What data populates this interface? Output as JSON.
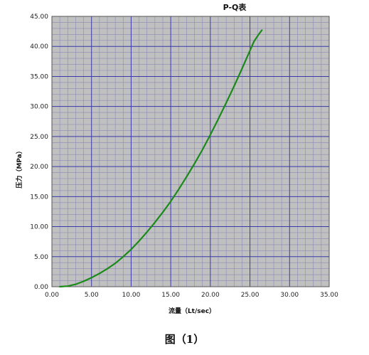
{
  "chart_data": {
    "type": "line",
    "title": "P-Q表",
    "xlabel": "流量（Lt/sec）",
    "ylabel": "压力（MPa）",
    "xlim": [
      0,
      35
    ],
    "ylim": [
      0,
      45
    ],
    "x_ticks": [
      "0.00",
      "5.00",
      "10.00",
      "15.00",
      "20.00",
      "25.00",
      "30.00",
      "35.00"
    ],
    "y_ticks": [
      "0.00",
      "5.00",
      "10.00",
      "15.00",
      "20.00",
      "25.00",
      "30.00",
      "35.00",
      "40.00",
      "45.00"
    ],
    "grid": true,
    "series": [
      {
        "color": "#1a8a1a",
        "x": [
          1.0,
          2.0,
          3.0,
          4.0,
          5.0,
          6.0,
          7.0,
          8.0,
          9.0,
          10.0,
          11.0,
          12.0,
          13.0,
          14.0,
          15.0,
          16.0,
          17.0,
          18.0,
          19.0,
          20.0,
          21.0,
          22.0,
          23.0,
          24.0,
          25.0,
          25.5,
          26.0,
          26.5
        ],
        "y": [
          0.0,
          0.1,
          0.4,
          0.9,
          1.5,
          2.2,
          3.0,
          3.9,
          5.0,
          6.2,
          7.6,
          9.1,
          10.7,
          12.4,
          14.2,
          16.2,
          18.3,
          20.5,
          22.8,
          25.3,
          27.9,
          30.6,
          33.4,
          36.3,
          39.3,
          40.8,
          41.8,
          42.7
        ]
      }
    ]
  },
  "colors": {
    "plot_background": "#c0c0c0",
    "major_grid": "#3a3aa8",
    "minor_grid": "#8a8ab8",
    "line": "#1a8a1a"
  },
  "caption": "图（1）"
}
